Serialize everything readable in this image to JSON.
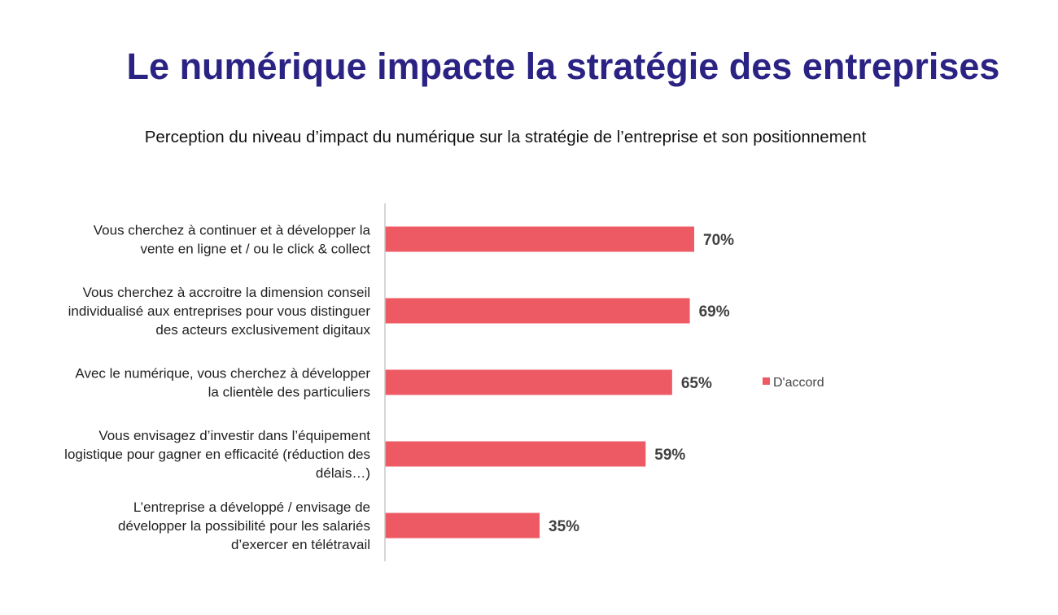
{
  "title": "Le numérique impacte la stratégie des entreprises",
  "subtitle": "Perception du niveau d’impact du numérique sur la stratégie de l’entreprise et son positionnement",
  "chart_data": {
    "type": "bar",
    "orientation": "horizontal",
    "categories": [
      [
        "Vous cherchez à continuer et à développer la",
        "vente en ligne et / ou le click & collect"
      ],
      [
        "Vous cherchez à accroitre la dimension conseil",
        "individualisé aux entreprises pour vous distinguer",
        "des acteurs exclusivement digitaux"
      ],
      [
        "Avec le numérique, vous cherchez à développer",
        "la clientèle des particuliers"
      ],
      [
        "Vous envisagez d’investir dans l’équipement",
        "logistique pour gagner en efficacité (réduction des",
        "délais…)"
      ],
      [
        "L’entreprise a développé / envisage de",
        "développer la possibilité pour les salariés",
        "d’exercer en télétravail"
      ]
    ],
    "series": [
      {
        "name": "D'accord",
        "values": [
          70,
          69,
          65,
          59,
          35
        ],
        "color": "#ee5a63"
      }
    ],
    "data_labels": [
      "70%",
      "69%",
      "65%",
      "59%",
      "35%"
    ],
    "xlim": [
      0,
      100
    ],
    "grid": false,
    "legend": "right"
  }
}
